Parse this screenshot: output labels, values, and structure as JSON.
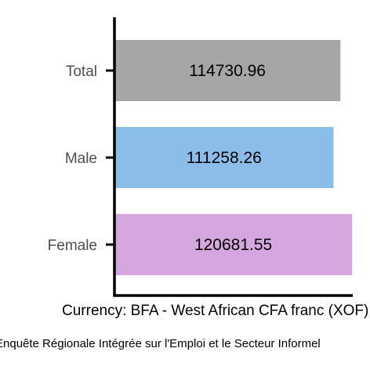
{
  "chart_data": {
    "type": "bar",
    "orientation": "horizontal",
    "categories": [
      "Total",
      "Male",
      "Female"
    ],
    "values": [
      114730.96,
      111258.26,
      120681.55
    ],
    "value_labels": [
      "114730.96",
      "111258.26",
      "120681.55"
    ],
    "colors": [
      "#a6a6a6",
      "#8bbde8",
      "#d5a6e0"
    ],
    "xlabel": "Currency: BFA - West African CFA franc (XOF)",
    "ylabel": "",
    "title": "",
    "source": "Enquête Régionale Intégrée sur l'Emploi et le Secteur Informel",
    "xlim": [
      0,
      121000
    ],
    "grid": false,
    "legend": "none"
  }
}
